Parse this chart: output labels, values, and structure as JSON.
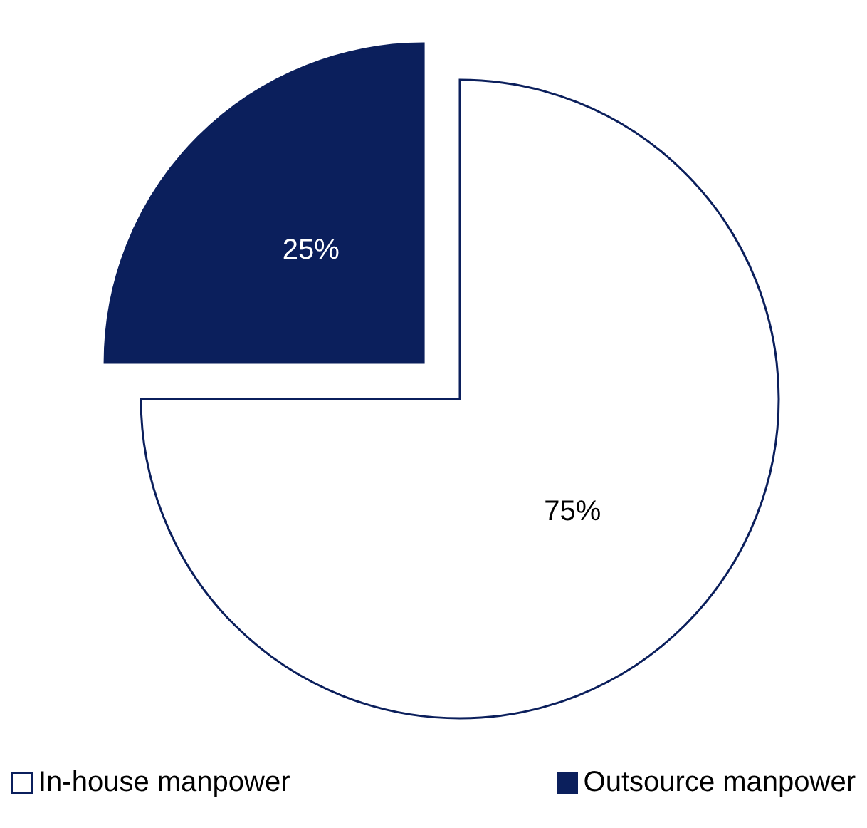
{
  "chart_data": {
    "type": "pie",
    "categories": [
      "In-house manpower",
      "Outsource manpower"
    ],
    "values": [
      75,
      25
    ],
    "colors": [
      "#ffffff",
      "#0b1f5c"
    ],
    "value_labels": [
      "75%",
      "25%"
    ],
    "legend": "bottom"
  }
}
